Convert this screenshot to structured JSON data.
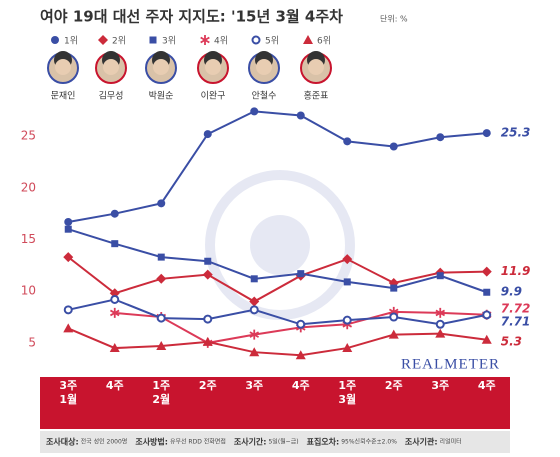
{
  "chart_data": {
    "type": "line",
    "title": "여야 19대 대선 주자 지지도: '15년 3월 4주차",
    "unit_note": "단위: %",
    "categories": [
      [
        "3주",
        "1월"
      ],
      [
        "4주"
      ],
      [
        "1주",
        "2월"
      ],
      [
        "2주"
      ],
      [
        "3주"
      ],
      [
        "4주"
      ],
      [
        "1주",
        "3월"
      ],
      [
        "2주"
      ],
      [
        "3주"
      ],
      [
        "4주"
      ]
    ],
    "series": [
      {
        "name": "1위",
        "candidate": "문재인",
        "color": "#3a4ea5",
        "marker": "circle",
        "values": [
          16.7,
          17.5,
          18.5,
          25.2,
          27.4,
          27.0,
          24.5,
          24.0,
          24.9,
          25.3
        ]
      },
      {
        "name": "2위",
        "candidate": "김무성",
        "color": "#cc2b3b",
        "marker": "diamond",
        "values": [
          13.3,
          9.8,
          11.2,
          11.6,
          9.0,
          11.5,
          13.1,
          10.8,
          11.8,
          11.9
        ]
      },
      {
        "name": "3위",
        "candidate": "박원순",
        "color": "#3a4ea5",
        "marker": "square",
        "values": [
          16.0,
          14.6,
          13.3,
          12.9,
          11.2,
          11.7,
          10.9,
          10.3,
          11.5,
          9.9
        ]
      },
      {
        "name": "4위",
        "candidate": "이완구",
        "color": "#dc3a58",
        "marker": "star",
        "values": [
          null,
          7.9,
          7.5,
          5.0,
          5.8,
          6.5,
          6.8,
          8.0,
          7.9,
          7.72
        ]
      },
      {
        "name": "5위",
        "candidate": "안철수",
        "color": "#3a4ea5",
        "marker": "open-circle",
        "values": [
          8.2,
          9.2,
          7.4,
          7.3,
          8.2,
          6.8,
          7.2,
          7.5,
          6.8,
          7.71
        ]
      },
      {
        "name": "6위",
        "candidate": "홍준표",
        "color": "#cc2b3b",
        "marker": "triangle",
        "values": [
          6.4,
          4.5,
          4.7,
          5.1,
          4.1,
          3.8,
          4.5,
          5.8,
          5.9,
          5.3
        ]
      }
    ],
    "ylim": [
      1.7,
      28.5
    ],
    "yticks": [
      5,
      10,
      15,
      20,
      25
    ],
    "grid": false,
    "watermark": "REALMETER",
    "notes": [
      {
        "label": "조사대상:",
        "text": "전국 성인 2000명"
      },
      {
        "label": "조사방법:",
        "text": "유무선 RDD 전화면접"
      },
      {
        "label": "조사기간:",
        "text": "5일(월~금)"
      },
      {
        "label": "표집오차:",
        "text": "95%신뢰수준±2.0%"
      },
      {
        "label": "조사기관:",
        "text": "리얼미터"
      }
    ]
  }
}
